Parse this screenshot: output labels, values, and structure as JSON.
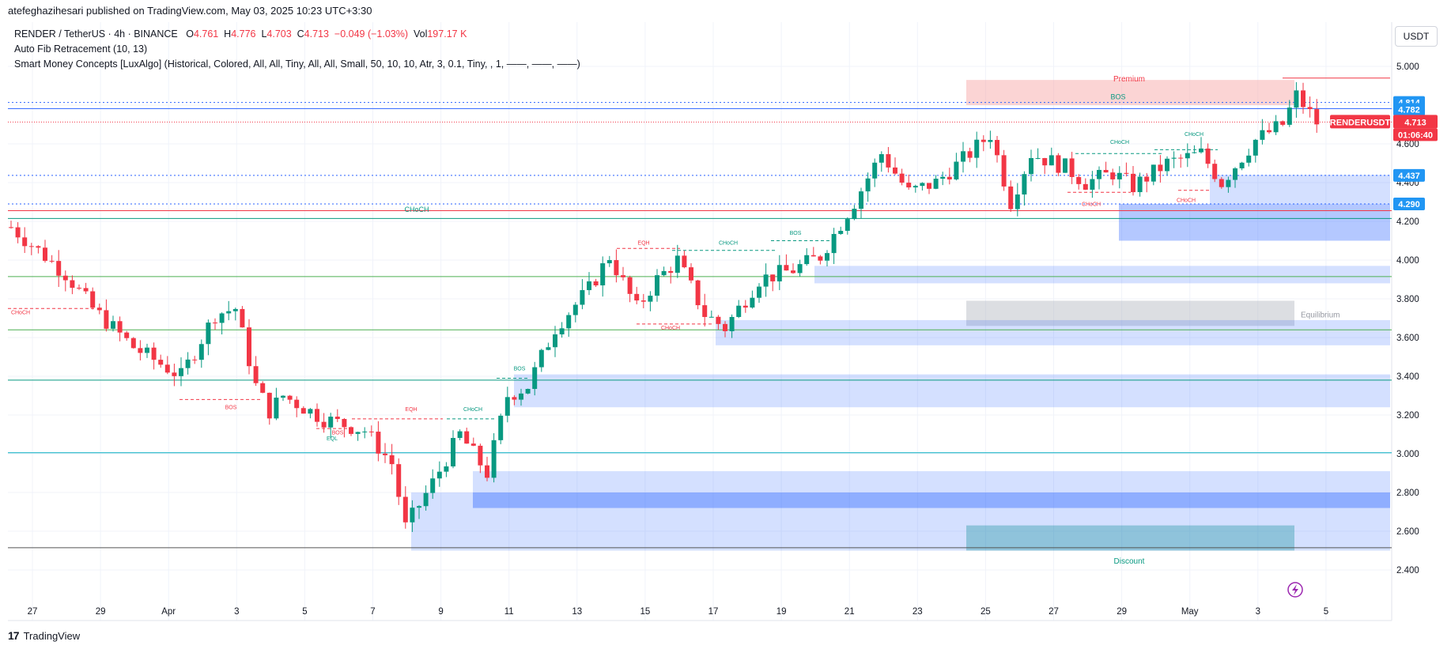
{
  "header": {
    "published_line": "atefeghazihesari published on TradingView.com, May 03, 2025 10:23 UTC+3:30",
    "symbol_line": "RENDER / TetherUS · 4h · BINANCE",
    "ohlc": {
      "o_label": "O",
      "o": "4.761",
      "h_label": "H",
      "h": "4.776",
      "l_label": "L",
      "l": "4.703",
      "c_label": "C",
      "c": "4.713",
      "change": "−0.049 (−1.03%)",
      "vol_label": "Vol",
      "vol": "197.17 K"
    },
    "indicator_1": "Auto Fib Retracement (10, 13)",
    "indicator_2": "Smart Money Concepts [LuxAlgo] (Historical, Colored, All, All, Tiny, All, All, Small, 50, 10, 10, Atr, 3, 0.1, Tiny, , 1, ——, ——, ——)"
  },
  "currency_button": "USDT",
  "footer_logo": "TradingView",
  "colors": {
    "up": "#089981",
    "down": "#f23645",
    "blue_zone": "#2962ff",
    "price_tag": "#2196f3",
    "grid": "#f0f3fa"
  },
  "chart_data": {
    "type": "candlestick",
    "symbol": "RENDERUSDT",
    "timeframe": "4h",
    "y_ticks": [
      "5.000",
      "4.800",
      "4.600",
      "4.400",
      "4.200",
      "4.000",
      "3.800",
      "3.600",
      "3.400",
      "3.200",
      "3.000",
      "2.800",
      "2.600",
      "2.400"
    ],
    "ylim": [
      2.3,
      5.1
    ],
    "x_ticks": [
      "27",
      "29",
      "Apr",
      "3",
      "5",
      "7",
      "9",
      "11",
      "13",
      "15",
      "17",
      "19",
      "21",
      "23",
      "25",
      "27",
      "29",
      "May",
      "3",
      "5"
    ],
    "price_labels": [
      {
        "text": "4.814",
        "value": 4.814,
        "color": "#2196f3"
      },
      {
        "text": "4.782",
        "value": 4.782,
        "color": "#2196f3"
      },
      {
        "text": "RENDERUSDT",
        "value": 4.713,
        "color": "#f23645"
      },
      {
        "text": "4.713",
        "value": 4.713,
        "color": "#f23645"
      },
      {
        "text": "01:06:40",
        "value": 4.713,
        "color": "#f23645"
      },
      {
        "text": "4.437",
        "value": 4.437,
        "color": "#2196f3"
      },
      {
        "text": "4.290",
        "value": 4.29,
        "color": "#2196f3"
      }
    ],
    "zone_labels": [
      "Premium",
      "Equilibrium",
      "Discount"
    ],
    "structure_labels": [
      "BOS",
      "CHoCH",
      "EQH",
      "EQL"
    ],
    "anchors": [
      [
        0,
        4.17
      ],
      [
        8,
        3.93
      ],
      [
        12,
        3.75
      ],
      [
        18,
        3.55
      ],
      [
        25,
        3.4
      ],
      [
        30,
        3.72
      ],
      [
        33,
        3.75
      ],
      [
        36,
        3.35
      ],
      [
        38,
        3.22
      ],
      [
        40,
        3.3
      ],
      [
        46,
        3.18
      ],
      [
        52,
        3.12
      ],
      [
        56,
        2.95
      ],
      [
        58,
        2.62
      ],
      [
        62,
        2.85
      ],
      [
        66,
        3.1
      ],
      [
        70,
        2.9
      ],
      [
        73,
        3.3
      ],
      [
        76,
        3.35
      ],
      [
        80,
        3.65
      ],
      [
        85,
        3.85
      ],
      [
        88,
        4.02
      ],
      [
        92,
        3.75
      ],
      [
        95,
        3.9
      ],
      [
        98,
        4.0
      ],
      [
        102,
        3.72
      ],
      [
        105,
        3.65
      ],
      [
        110,
        3.9
      ],
      [
        115,
        3.95
      ],
      [
        119,
        4.02
      ],
      [
        124,
        4.3
      ],
      [
        128,
        4.55
      ],
      [
        132,
        4.35
      ],
      [
        136,
        4.4
      ],
      [
        140,
        4.52
      ],
      [
        144,
        4.65
      ],
      [
        147,
        4.3
      ],
      [
        150,
        4.55
      ],
      [
        155,
        4.48
      ],
      [
        158,
        4.4
      ],
      [
        162,
        4.45
      ],
      [
        165,
        4.38
      ],
      [
        170,
        4.5
      ],
      [
        175,
        4.55
      ],
      [
        178,
        4.4
      ],
      [
        183,
        4.62
      ],
      [
        187,
        4.7
      ],
      [
        189,
        4.85
      ],
      [
        192,
        4.71
      ]
    ]
  }
}
